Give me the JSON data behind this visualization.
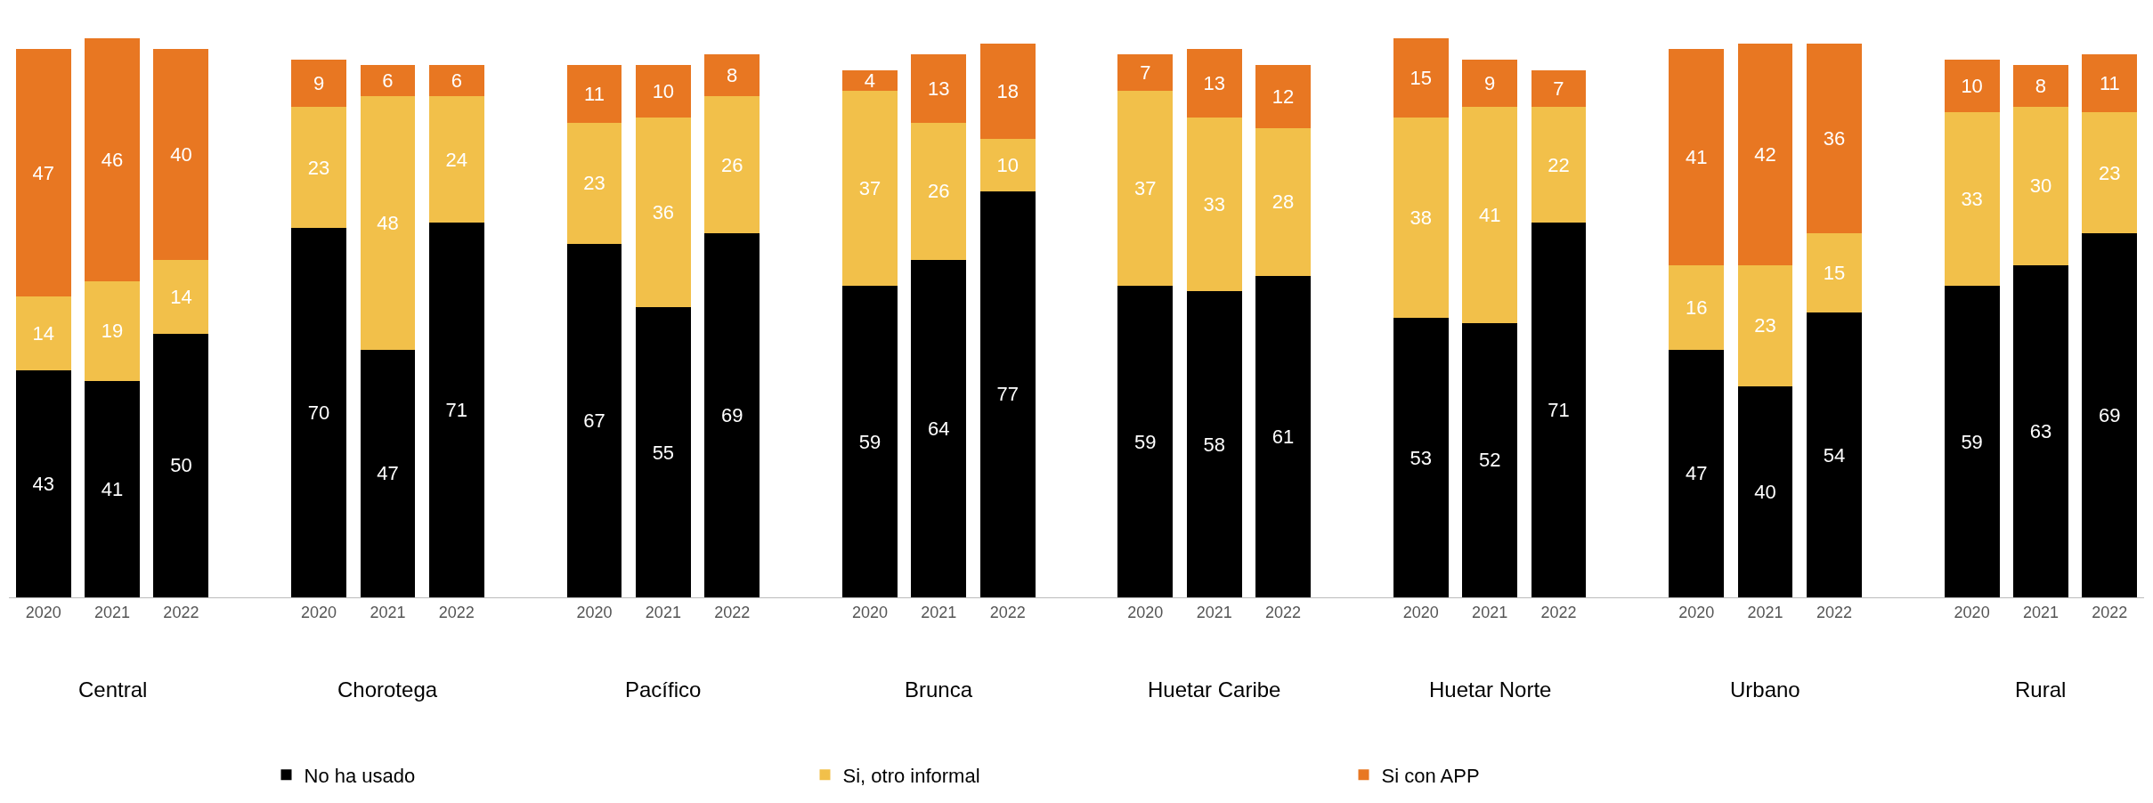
{
  "chart_data": {
    "type": "bar",
    "stacked": true,
    "data_labels": true,
    "legend": "bottom",
    "tick_labels": "x",
    "categories": [
      "2020",
      "2021",
      "2022",
      "2020",
      "2021",
      "2022",
      "2020",
      "2021",
      "2022",
      "2020",
      "2021",
      "2022",
      "2020",
      "2021",
      "2022",
      "2020",
      "2021",
      "2022",
      "2020",
      "2021",
      "2022",
      "2020",
      "2021",
      "2022"
    ],
    "annotations": [
      "Central",
      "Chorotega",
      "Pacífico",
      "Brunca",
      "Huetar Caribe",
      "Huetar Norte",
      "Urbano",
      "Rural"
    ],
    "series": [
      {
        "name": "No ha usado",
        "color": "#000000",
        "values": [
          43,
          41,
          50,
          70,
          47,
          71,
          67,
          55,
          69,
          59,
          64,
          77,
          59,
          58,
          61,
          53,
          52,
          71,
          47,
          40,
          54,
          59,
          63,
          69
        ]
      },
      {
        "name": "Si, otro informal",
        "color": "#f2c04a",
        "values": [
          14,
          19,
          14,
          23,
          48,
          24,
          23,
          36,
          26,
          37,
          26,
          10,
          37,
          33,
          28,
          38,
          41,
          22,
          16,
          23,
          15,
          33,
          30,
          23
        ]
      },
      {
        "name": "Si con APP",
        "color": "#e87722",
        "values": [
          47,
          46,
          40,
          9,
          6,
          6,
          11,
          10,
          8,
          4,
          13,
          18,
          7,
          13,
          12,
          15,
          9,
          7,
          41,
          42,
          36,
          10,
          8,
          11
        ]
      }
    ]
  }
}
